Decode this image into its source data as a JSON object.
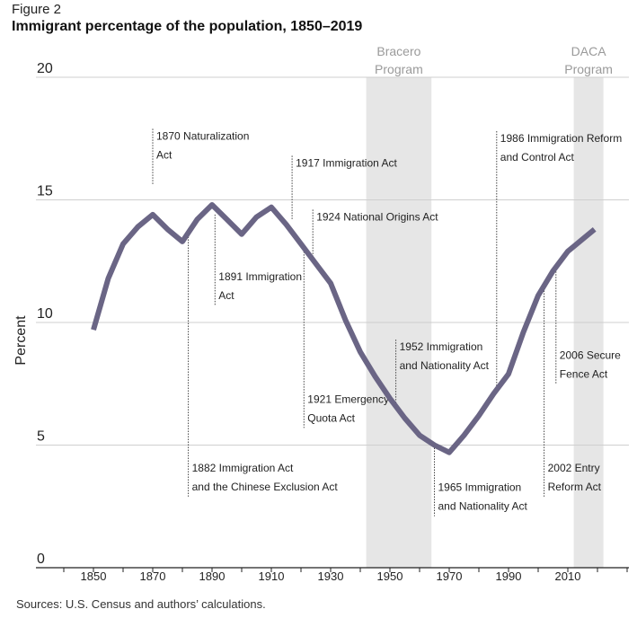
{
  "figure_label": "Figure 2",
  "title": "Immigrant percentage of the population, 1850–2019",
  "source": "Sources: U.S. Census and authors’ calculations.",
  "chart_data": {
    "type": "line",
    "ylabel": "Percent",
    "xlabel": "",
    "xlim": [
      1842,
      2030
    ],
    "ylim": [
      0,
      20
    ],
    "grid": true,
    "x_ticks": [
      1850,
      1870,
      1890,
      1910,
      1930,
      1950,
      1970,
      1990,
      2010
    ],
    "y_ticks": [
      0,
      5,
      10,
      15,
      20
    ],
    "line_color": "#6a6585",
    "series": [
      {
        "x": [
          1850,
          1855,
          1860,
          1865,
          1870,
          1875,
          1880,
          1885,
          1890,
          1895,
          1900,
          1905,
          1910,
          1915,
          1920,
          1925,
          1930,
          1935,
          1940,
          1945,
          1950,
          1955,
          1960,
          1965,
          1970,
          1975,
          1980,
          1985,
          1990,
          1995,
          2000,
          2005,
          2010,
          2015,
          2019
        ],
        "y": [
          9.7,
          11.8,
          13.2,
          13.9,
          14.4,
          13.8,
          13.3,
          14.2,
          14.8,
          14.2,
          13.6,
          14.3,
          14.7,
          14.0,
          13.2,
          12.4,
          11.6,
          10.1,
          8.8,
          7.8,
          6.9,
          6.1,
          5.4,
          5.0,
          4.7,
          5.4,
          6.2,
          7.1,
          7.9,
          9.6,
          11.1,
          12.1,
          12.9,
          13.4,
          13.8
        ]
      }
    ],
    "shaded_periods": [
      {
        "label_line1": "Bracero",
        "label_line2": "Program",
        "start": 1942,
        "end": 1964
      },
      {
        "label_line1": "DACA",
        "label_line2": "Program",
        "start": 2012,
        "end": 2022
      }
    ],
    "annotations": [
      {
        "year": 1870,
        "y_top": 17.9,
        "y_bottom": 15.6,
        "side": "up",
        "lines": [
          "1870 Naturalization",
          "Act"
        ]
      },
      {
        "year": 1882,
        "y_top": 13.5,
        "y_bottom": 2.9,
        "side": "down",
        "lines": [
          "1882 Immigration Act",
          "and the Chinese Exclusion Act"
        ]
      },
      {
        "year": 1891,
        "y_top": 14.4,
        "y_bottom": 10.7,
        "side": "down",
        "lines": [
          "1891 Immigration",
          "Act"
        ]
      },
      {
        "year": 1917,
        "y_top": 16.8,
        "y_bottom": 14.2,
        "side": "up",
        "lines": [
          "1917 Immigration Act"
        ]
      },
      {
        "year": 1921,
        "y_top": 13.0,
        "y_bottom": 5.7,
        "side": "down",
        "lines": [
          "1921 Emergency",
          "Quota Act"
        ]
      },
      {
        "year": 1924,
        "y_top": 14.6,
        "y_bottom": 12.6,
        "side": "up",
        "lines": [
          "1924 National Origins Act"
        ]
      },
      {
        "year": 1952,
        "y_top": 9.3,
        "y_bottom": 6.7,
        "side": "up",
        "lines": [
          "1952 Immigration",
          "and Nationality Act"
        ]
      },
      {
        "year": 1965,
        "y_top": 5.0,
        "y_bottom": 2.1,
        "side": "down",
        "lines": [
          "1965 Immigration",
          "and Nationality Act"
        ]
      },
      {
        "year": 1986,
        "y_top": 17.8,
        "y_bottom": 7.4,
        "side": "up",
        "lines": [
          "1986 Immigration Reform",
          "and Control Act"
        ]
      },
      {
        "year": 2002,
        "y_top": 11.3,
        "y_bottom": 2.9,
        "side": "down",
        "lines": [
          "2002 Entry",
          "Reform Act"
        ]
      },
      {
        "year": 2006,
        "y_top": 12.3,
        "y_bottom": 7.5,
        "side": "down",
        "lines": [
          "2006 Secure",
          "Fence Act"
        ]
      }
    ]
  }
}
